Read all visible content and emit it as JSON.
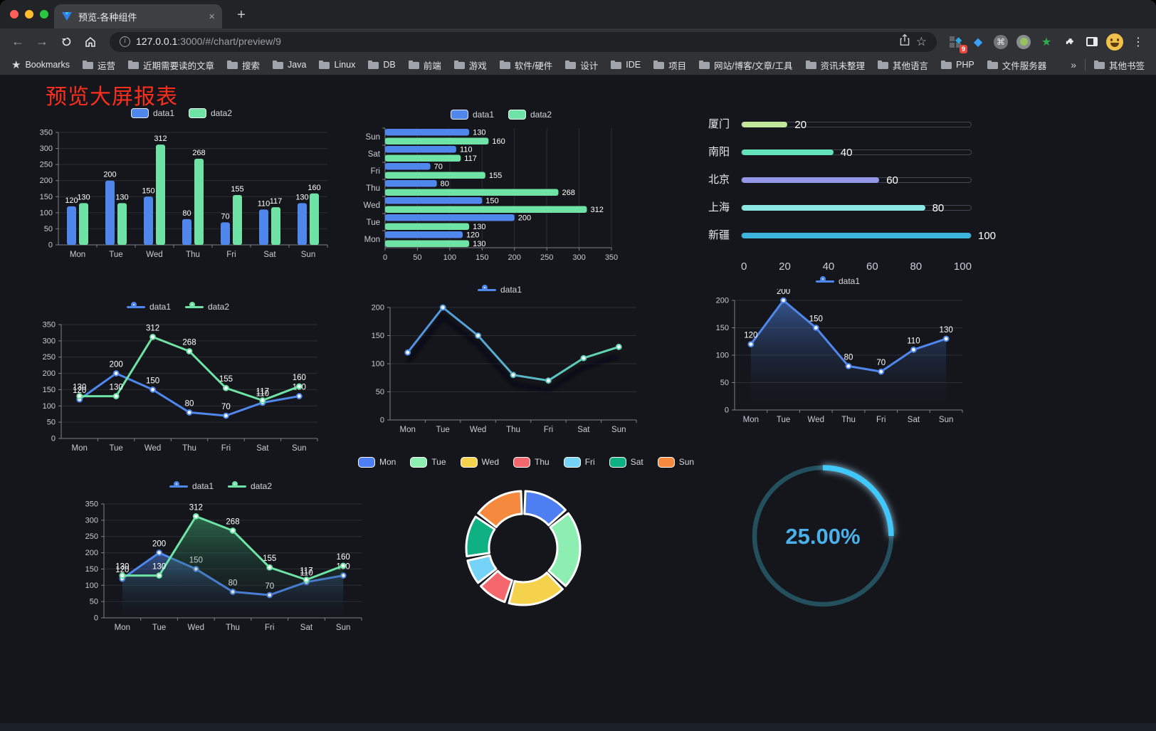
{
  "browser": {
    "tab_title": "预览-各种组件",
    "close_tab": "×",
    "new_tab_button": "+",
    "url_host": "127.0.0.1",
    "url_rest": ":3000/#/chart/preview/9",
    "extension_badge": "9",
    "bookmarks_root": "Bookmarks",
    "bookmarks": [
      "运营",
      "近期需要读的文章",
      "搜索",
      "Java",
      "Linux",
      "DB",
      "前端",
      "游戏",
      "软件/硬件",
      "设计",
      "IDE",
      "项目",
      "网站/博客/文章/工具",
      "资讯未整理",
      "其他语言",
      "PHP",
      "文件服务器"
    ],
    "bookmarks_overflow": "»",
    "other_bookmarks": "其他书签"
  },
  "page": {
    "title": "预览大屏报表",
    "title_color": "#fb2e1d"
  },
  "chart_data": [
    {
      "id": "grouped-bar",
      "type": "bar",
      "categories": [
        "Mon",
        "Tue",
        "Wed",
        "Thu",
        "Fri",
        "Sat",
        "Sun"
      ],
      "series": [
        {
          "name": "data1",
          "color": "#5087ec",
          "values": [
            120,
            200,
            150,
            80,
            70,
            110,
            130
          ]
        },
        {
          "name": "data2",
          "color": "#6fe3a5",
          "values": [
            130,
            130,
            312,
            268,
            155,
            117,
            160
          ]
        }
      ],
      "ylim": [
        0,
        350
      ],
      "ytick_step": 50,
      "legend_position": "top",
      "grid": true
    },
    {
      "id": "horizontal-bar",
      "type": "bar",
      "orientation": "horizontal",
      "categories_top_to_bottom": [
        "Sun",
        "Sat",
        "Fri",
        "Thu",
        "Wed",
        "Tue",
        "Mon"
      ],
      "series": [
        {
          "name": "data1",
          "color": "#5087ec",
          "values_top_to_bottom": [
            130,
            110,
            70,
            80,
            150,
            200,
            120
          ]
        },
        {
          "name": "data2",
          "color": "#6fe3a5",
          "values_top_to_bottom": [
            160,
            117,
            155,
            268,
            312,
            130,
            130
          ]
        }
      ],
      "xlim": [
        0,
        350
      ],
      "xtick_step": 50,
      "legend_position": "top",
      "grid": true
    },
    {
      "id": "progress-bars",
      "type": "bar",
      "style": "progress",
      "items": [
        {
          "label": "厦门",
          "value": 20,
          "color": "#c3e79a"
        },
        {
          "label": "南阳",
          "value": 40,
          "color": "#63e2b7"
        },
        {
          "label": "北京",
          "value": 60,
          "color": "#9496e8"
        },
        {
          "label": "上海",
          "value": 80,
          "color": "#8ae7e2"
        },
        {
          "label": "新疆",
          "value": 100,
          "color": "#3cb4de"
        }
      ],
      "xticks": [
        0,
        20,
        40,
        60,
        80,
        100
      ],
      "xlim": [
        0,
        100
      ]
    },
    {
      "id": "line-two-series",
      "type": "line",
      "categories": [
        "Mon",
        "Tue",
        "Wed",
        "Thu",
        "Fri",
        "Sat",
        "Sun"
      ],
      "series": [
        {
          "name": "data1",
          "color": "#5087ec",
          "values": [
            120,
            200,
            150,
            80,
            70,
            110,
            130
          ]
        },
        {
          "name": "data2",
          "color": "#6fe3a5",
          "values": [
            130,
            130,
            312,
            268,
            155,
            117,
            160
          ]
        }
      ],
      "ylim": [
        0,
        350
      ],
      "ytick_step": 50,
      "point_labels": true,
      "legend_position": "top"
    },
    {
      "id": "gradient-line",
      "type": "line",
      "categories": [
        "Mon",
        "Tue",
        "Wed",
        "Thu",
        "Fri",
        "Sat",
        "Sun"
      ],
      "series": [
        {
          "name": "data1",
          "color": "#5087ec",
          "gradient_end": "#63e0a7",
          "values": [
            120,
            200,
            150,
            80,
            70,
            110,
            130
          ]
        }
      ],
      "ylim": [
        0,
        200
      ],
      "ytick_step": 50,
      "point_labels": false,
      "legend_position": "top"
    },
    {
      "id": "area-single",
      "type": "area",
      "categories": [
        "Mon",
        "Tue",
        "Wed",
        "Thu",
        "Fri",
        "Sat",
        "Sun"
      ],
      "series": [
        {
          "name": "data1",
          "color": "#5087ec",
          "values": [
            120,
            200,
            150,
            80,
            70,
            110,
            130
          ]
        }
      ],
      "ylim": [
        0,
        200
      ],
      "ytick_step": 50,
      "point_labels": true,
      "legend_position": "top"
    },
    {
      "id": "line-area-two-series",
      "type": "area",
      "categories": [
        "Mon",
        "Tue",
        "Wed",
        "Thu",
        "Fri",
        "Sat",
        "Sun"
      ],
      "series": [
        {
          "name": "data1",
          "color": "#5087ec",
          "values": [
            120,
            200,
            150,
            80,
            70,
            110,
            130
          ]
        },
        {
          "name": "data2",
          "color": "#6fe3a5",
          "values": [
            130,
            130,
            312,
            268,
            155,
            117,
            160
          ]
        }
      ],
      "ylim": [
        0,
        350
      ],
      "ytick_step": 50,
      "point_labels": true,
      "legend_position": "top"
    },
    {
      "id": "donut",
      "type": "pie",
      "labels": [
        "Mon",
        "Tue",
        "Wed",
        "Thu",
        "Fri",
        "Sat",
        "Sun"
      ],
      "values": [
        120,
        200,
        150,
        80,
        70,
        110,
        130
      ],
      "colors": [
        "#4e7ff2",
        "#8deeb2",
        "#f5d24b",
        "#f4676c",
        "#74d3f6",
        "#0fb183",
        "#f58a3e"
      ],
      "inner_radius_ratio": 0.6,
      "legend_position": "top"
    },
    {
      "id": "gauge",
      "type": "gauge",
      "value": 25,
      "display": "25.00%",
      "color": "#3fc8fb",
      "track_color": "#24505e",
      "text_color": "#4bb1ea"
    }
  ]
}
